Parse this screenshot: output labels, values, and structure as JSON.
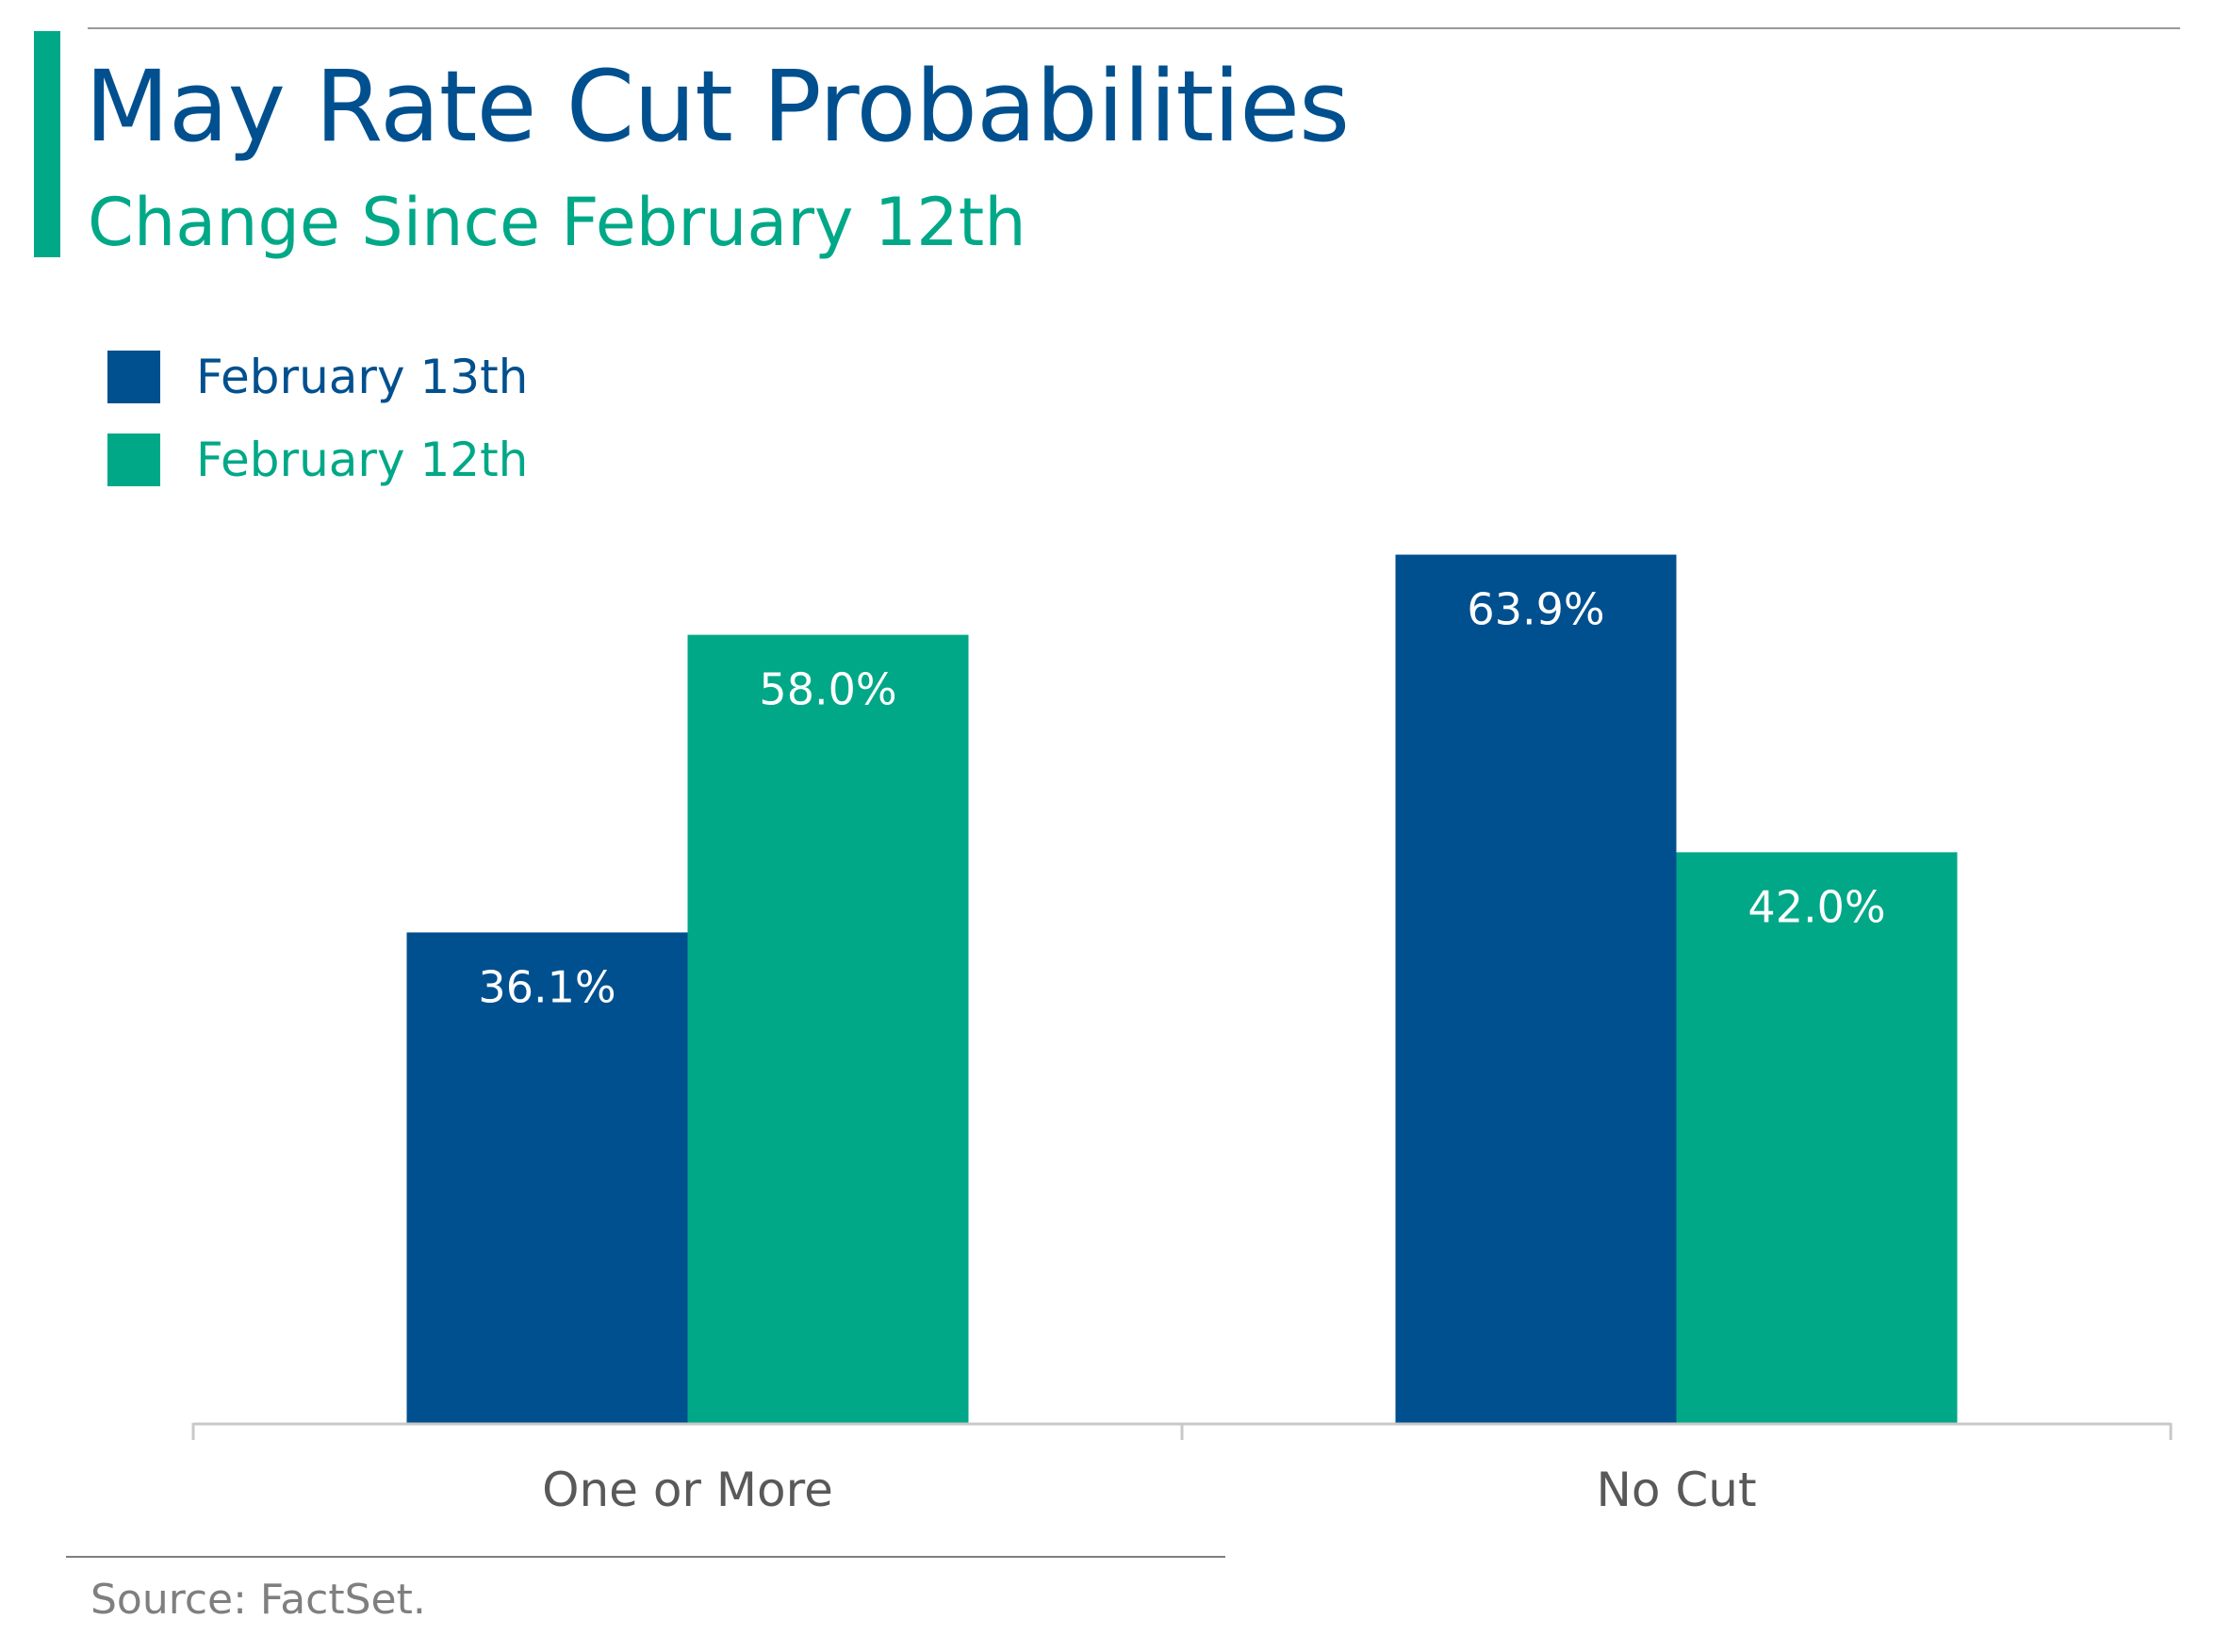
{
  "colors": {
    "accent": "#00a887",
    "primary": "#00508f",
    "axis": "#c8c8c8",
    "tick_label": "#595959",
    "source": "#7f7f7f"
  },
  "header": {
    "title": "May Rate Cut Probabilities",
    "subtitle": "Change Since February 12th"
  },
  "legend": [
    {
      "label": "February 13th",
      "color": "#00508f"
    },
    {
      "label": "February 12th",
      "color": "#00a887"
    }
  ],
  "chart_data": {
    "type": "bar",
    "title": "May Rate Cut Probabilities",
    "subtitle": "Change Since February 12th",
    "categories": [
      "One or More",
      "No Cut"
    ],
    "series": [
      {
        "name": "February 13th",
        "color": "#00508f",
        "values": [
          36.1,
          63.9
        ],
        "labels": [
          "36.1%",
          "63.9%"
        ]
      },
      {
        "name": "February 12th",
        "color": "#00a887",
        "values": [
          58.0,
          42.0
        ],
        "labels": [
          "58.0%",
          "42.0%"
        ]
      }
    ],
    "xlabel": "",
    "ylabel": "",
    "ylim": [
      0,
      63.9
    ],
    "grid": false,
    "legend_position": "top-left"
  },
  "footer": {
    "source": "Source: FactSet."
  }
}
